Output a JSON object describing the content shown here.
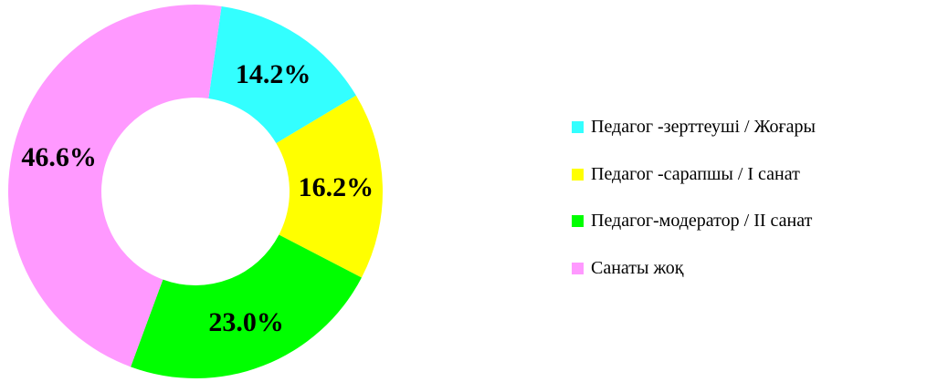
{
  "chart_data": {
    "type": "pie",
    "donut": true,
    "slices": [
      {
        "label": "Педагог -зерттеуші / Жоғары",
        "value": 14.2,
        "value_label": "14.2%",
        "color": "#33FFFF"
      },
      {
        "label": "Педагог -сарапшы / I санат",
        "value": 16.2,
        "value_label": "16.2%",
        "color": "#FFFF00"
      },
      {
        "label": "Педагог-модератор / II санат",
        "value": 23.0,
        "value_label": "23.0%",
        "color": "#00FF00"
      },
      {
        "label": "Санаты жоқ",
        "value": 46.6,
        "value_label": "46.6%",
        "color": "#FF99FF"
      }
    ],
    "legend_position": "right"
  }
}
